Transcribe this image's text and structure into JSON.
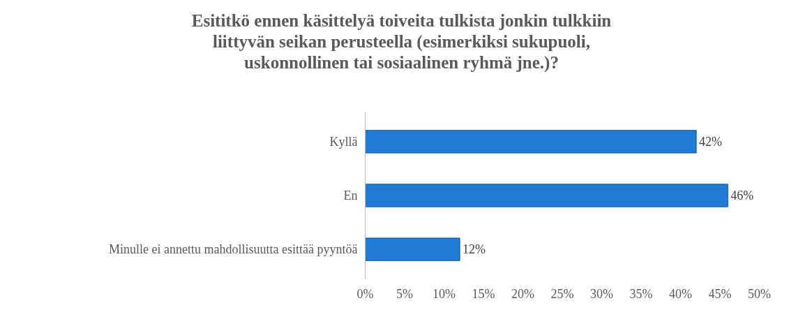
{
  "chart_data": {
    "type": "bar",
    "orientation": "horizontal",
    "title": "Esititkö ennen käsittelyä toiveita tulkista jonkin tulkkiin liittyvän seikan perusteella (esimerkiksi sukupuoli, uskonnollinen tai sosiaalinen ryhmä jne.)?",
    "categories": [
      "Kyllä",
      "En",
      "Minulle ei annettu mahdollisuutta esittää pyyntöä"
    ],
    "values": [
      42,
      46,
      12
    ],
    "color": "#1f7bd6",
    "value_labels": [
      "42%",
      "46%",
      "12%"
    ],
    "xlim": [
      0,
      50
    ],
    "xticks": [
      {
        "value": 0,
        "label": "0%"
      },
      {
        "value": 5,
        "label": "5%"
      },
      {
        "value": 10,
        "label": "10%"
      },
      {
        "value": 15,
        "label": "15%"
      },
      {
        "value": 20,
        "label": "20%"
      },
      {
        "value": 25,
        "label": "25%"
      },
      {
        "value": 30,
        "label": "30%"
      },
      {
        "value": 35,
        "label": "35%"
      },
      {
        "value": 40,
        "label": "40%"
      },
      {
        "value": 45,
        "label": "45%"
      },
      {
        "value": 50,
        "label": "50%"
      }
    ],
    "grid": false
  }
}
